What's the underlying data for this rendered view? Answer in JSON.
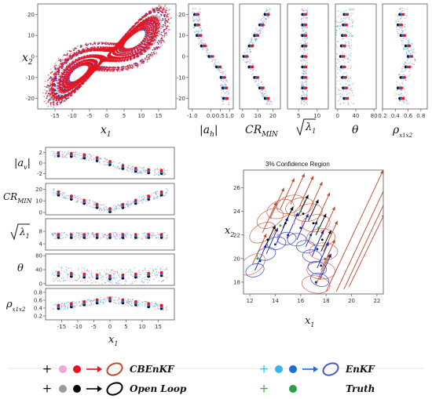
{
  "colors": {
    "cbenkf_plus": "#111111",
    "cbenkf_light": "#f2a5d6",
    "cbenkf_dark": "#e8131d",
    "cbenkf_ellipse": "#c0472c",
    "openloop_plus": "#111111",
    "openloop_light": "#9a9a9a",
    "openloop_dark": "#000000",
    "enkf_light": "#35b7ea",
    "enkf_mid": "#1c6fd1",
    "enkf_dark": "#1d20a5",
    "enkf_ellipse": "#4a57c8",
    "truth_plus": "#4aa64a",
    "truth_dot": "#2d9d4f"
  },
  "legend": [
    {
      "name": "CBEnKF",
      "marker": "plus-dot-dot-arrow-ellipse"
    },
    {
      "name": "EnKF",
      "marker": "plus-dot-dot-arrow-ellipse"
    },
    {
      "name": "Open Loop",
      "marker": "plus-dot-dot-arrow-ellipse"
    },
    {
      "name": "Truth",
      "marker": "plus-dot"
    }
  ],
  "chart_data": [
    {
      "id": "phase",
      "type": "scatter",
      "xlabel": "x1",
      "ylabel": "x2",
      "xlim": [
        -20,
        20
      ],
      "ylim": [
        -25,
        25
      ],
      "xticks": [
        -15,
        -10,
        -5,
        0,
        5,
        10,
        15
      ],
      "yticks": [
        -20,
        -10,
        0,
        10,
        20
      ],
      "description_series": [
        "CBEnKF",
        "EnKF",
        "Open Loop",
        "Truth"
      ]
    },
    {
      "id": "ah",
      "type": "scatter",
      "xlabel": "|a_h|",
      "xlim": [
        -1.2,
        1.2
      ],
      "xticks": [
        -1.0,
        0.0,
        0.5,
        1.0
      ],
      "xtick_labels": [
        "-1.0",
        "0.0",
        "0.5",
        "1.0"
      ],
      "ylim": [
        -25,
        25
      ],
      "yticks": [
        -20,
        -10,
        0,
        10,
        20
      ]
    },
    {
      "id": "crmin_v",
      "type": "scatter",
      "xlabel": "CR_MIN",
      "xlim": [
        -2,
        25
      ],
      "xticks": [
        0,
        10,
        20
      ],
      "ylim": [
        -25,
        25
      ]
    },
    {
      "id": "lam_v",
      "type": "scatter",
      "xlabel": "sqrt(lambda1)",
      "xlim": [
        2,
        13
      ],
      "xticks": [
        5,
        10
      ],
      "ylim": [
        -25,
        25
      ]
    },
    {
      "id": "theta_v",
      "type": "scatter",
      "xlabel": "theta",
      "xlim": [
        -5,
        85
      ],
      "xticks": [
        0,
        40,
        80
      ],
      "ylim": [
        -25,
        25
      ]
    },
    {
      "id": "rho_v",
      "type": "scatter",
      "xlabel": "rho_x1x2",
      "xlim": [
        0.2,
        0.9
      ],
      "xticks": [
        0.2,
        0.4,
        0.6,
        0.8
      ],
      "ylim": [
        -25,
        25
      ]
    },
    {
      "id": "av",
      "type": "scatter",
      "ylabel": "|a_v|",
      "xlim": [
        -20,
        20
      ],
      "ylim": [
        -3,
        3
      ],
      "yticks": [
        -2,
        0,
        2
      ]
    },
    {
      "id": "crmin_h",
      "type": "scatter",
      "ylabel": "CR_MIN",
      "xlim": [
        -20,
        20
      ],
      "ylim": [
        -2,
        25
      ],
      "yticks": [
        0,
        10,
        20
      ]
    },
    {
      "id": "lam_h",
      "type": "scatter",
      "ylabel": "sqrt(lambda1)",
      "xlim": [
        -20,
        20
      ],
      "ylim": [
        2,
        12
      ],
      "yticks": [
        4,
        8
      ]
    },
    {
      "id": "theta_h",
      "type": "scatter",
      "ylabel": "theta",
      "xlim": [
        -20,
        20
      ],
      "ylim": [
        -5,
        85
      ],
      "yticks": [
        0,
        40,
        80
      ]
    },
    {
      "id": "rho_h",
      "type": "scatter",
      "ylabel": "rho_x1x2",
      "xlabel": "x1",
      "xlim": [
        -20,
        20
      ],
      "ylim": [
        0.1,
        0.9
      ],
      "xticks": [
        -15,
        -10,
        -5,
        0,
        5,
        10,
        15
      ],
      "yticks": [
        0.2,
        0.4,
        0.6,
        0.8
      ]
    },
    {
      "id": "confidence",
      "type": "scatter",
      "title": "3% Confidence Region",
      "xlabel": "x1",
      "ylabel": "x2",
      "xlim": [
        11.5,
        22.5
      ],
      "ylim": [
        17,
        27.5
      ],
      "xticks": [
        12,
        14,
        16,
        18,
        20,
        22
      ],
      "yticks": [
        18,
        20,
        22,
        24,
        26
      ]
    }
  ],
  "labels": {
    "phase_x": "x",
    "phase_x_sub": "1",
    "phase_y": "x",
    "phase_y_sub": "2",
    "ah": "|a",
    "ah_sub": "h",
    "ah_end": "|",
    "crmin": "CR",
    "crmin_sub": "MIN",
    "lam": "λ",
    "lam_sub": "1",
    "theta": "θ",
    "rho": "ρ",
    "rho_sub": "x1x2",
    "av": "|a",
    "av_sub": "v",
    "av_end": "|",
    "h_x": "x",
    "h_x_sub": "1",
    "conf_title": "3% Confidence Region",
    "conf_x": "x",
    "conf_x_sub": "1",
    "conf_y": "x",
    "conf_y_sub": "2"
  }
}
